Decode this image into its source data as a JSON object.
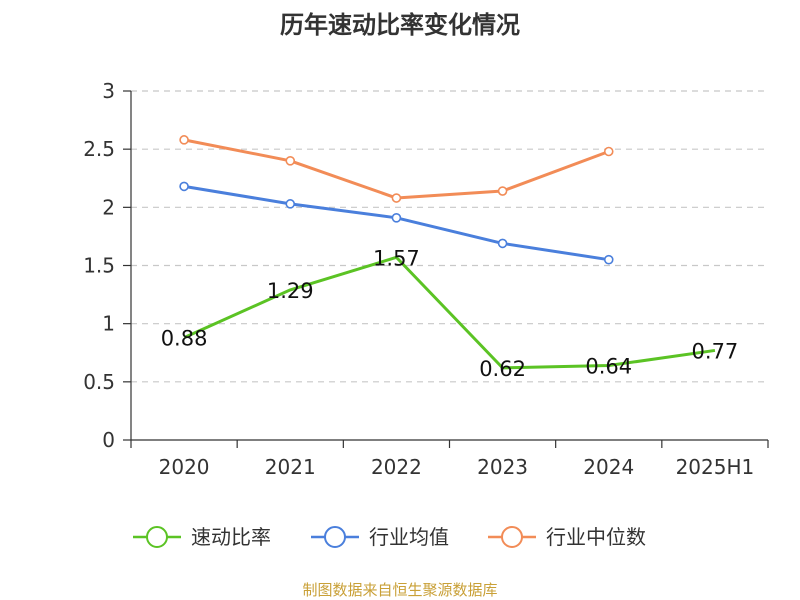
{
  "chart_data": {
    "type": "line",
    "title": "历年速动比率变化情况",
    "categories": [
      "2020",
      "2021",
      "2022",
      "2023",
      "2024",
      "2025H1"
    ],
    "ylim": [
      0,
      3
    ],
    "yticks": [
      "0",
      "0.5",
      "1",
      "1.5",
      "2",
      "2.5",
      "3"
    ],
    "grid": true,
    "legend_position": "bottom",
    "series": [
      {
        "name": "速动比率",
        "color": "#5bc324",
        "values": [
          0.88,
          1.29,
          1.57,
          0.62,
          0.64,
          0.77
        ],
        "labels": [
          "0.88",
          "1.29",
          "1.57",
          "0.62",
          "0.64",
          "0.77"
        ]
      },
      {
        "name": "行业均值",
        "color": "#4a7fdc",
        "values": [
          2.18,
          2.03,
          1.91,
          1.69,
          1.55,
          null
        ]
      },
      {
        "name": "行业中位数",
        "color": "#f28c57",
        "values": [
          2.58,
          2.4,
          2.08,
          2.14,
          2.48,
          null
        ]
      }
    ],
    "source": "制图数据来自恒生聚源数据库"
  }
}
